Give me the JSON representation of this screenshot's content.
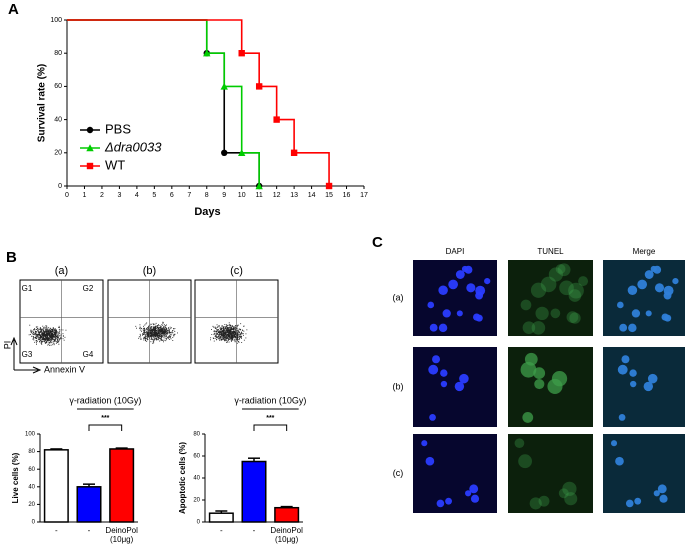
{
  "panel_labels": [
    "A",
    "B",
    "C"
  ],
  "chart_data": [
    {
      "type": "step",
      "y_label": "Survival rate (%)",
      "x_label": "Days",
      "xlim": [
        0,
        17
      ],
      "xticks": [
        0,
        1,
        2,
        3,
        4,
        5,
        6,
        7,
        8,
        9,
        10,
        11,
        12,
        13,
        14,
        15,
        16,
        17
      ],
      "ylim": [
        0,
        100
      ],
      "yticks": [
        0,
        20,
        40,
        60,
        80,
        100
      ],
      "legend": "lower left",
      "series": [
        {
          "name": "PBS",
          "color": "#000000",
          "marker": "circle",
          "x": [
            0,
            8,
            9,
            11
          ],
          "values": [
            100,
            80,
            20,
            0
          ]
        },
        {
          "name": "Δdra0033",
          "color": "#00cc00",
          "marker": "triangle",
          "x": [
            0,
            8,
            9,
            10,
            11
          ],
          "values": [
            100,
            80,
            60,
            20,
            0
          ]
        },
        {
          "name": "WT",
          "color": "#ff0000",
          "marker": "square",
          "x": [
            0,
            10,
            11,
            12,
            13,
            15
          ],
          "values": [
            100,
            80,
            60,
            40,
            20,
            0
          ]
        }
      ]
    },
    {
      "type": "bar",
      "title": "γ-radiation (10Gy)",
      "y_label": "Live cells (%)",
      "annotation": "***",
      "categories": [
        "-",
        "-",
        "DeinoPol (10μg)"
      ],
      "values": [
        82,
        40,
        83
      ],
      "errors": [
        1,
        3,
        1
      ],
      "colors": [
        "#ffffff",
        "#0000ff",
        "#ff0000"
      ],
      "ylim": [
        0,
        100
      ],
      "yticks": [
        0,
        20,
        40,
        60,
        80,
        100
      ]
    },
    {
      "type": "bar",
      "title": "γ-radiation (10Gy)",
      "y_label": "Apoptotic cells (%)",
      "annotation": "***",
      "categories": [
        "-",
        "-",
        "DeinoPol (10μg)"
      ],
      "values": [
        8,
        55,
        13
      ],
      "errors": [
        2,
        3,
        1
      ],
      "colors": [
        "#ffffff",
        "#0000ff",
        "#ff0000"
      ],
      "ylim": [
        0,
        80
      ],
      "yticks": [
        0,
        20,
        40,
        60,
        80
      ]
    }
  ],
  "flow": {
    "plots": [
      "(a)",
      "(b)",
      "(c)"
    ],
    "gates": [
      "G1",
      "G2",
      "G3",
      "G4"
    ],
    "y_label": "PI",
    "x_label": "Annexin V"
  },
  "microscopy": {
    "columns": [
      "DAPI",
      "TUNEL",
      "Merge"
    ],
    "rows": [
      "(a)",
      "(b)",
      "(c)"
    ]
  }
}
